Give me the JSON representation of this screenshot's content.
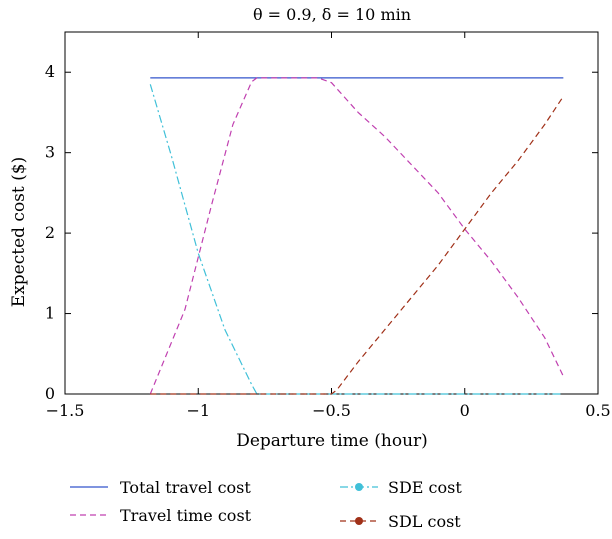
{
  "chart_data": {
    "type": "line",
    "title": "θ = 0.9, δ = 10 min",
    "xlabel": "Departure time (hour)",
    "ylabel": "Expected cost ($)",
    "xlim": [
      -1.5,
      0.5
    ],
    "ylim": [
      0,
      4.5
    ],
    "xticks": [
      -1.5,
      -1,
      -0.5,
      0,
      0.5
    ],
    "xtick_labels": [
      "−1.5",
      "−1",
      "−0.5",
      "0",
      "0.5"
    ],
    "yticks": [
      0,
      1,
      2,
      3,
      4
    ],
    "ytick_labels": [
      "0",
      "1",
      "2",
      "3",
      "4"
    ],
    "grid": false,
    "legend_position": "bottom",
    "series": [
      {
        "name": "Total travel cost",
        "color": "#3355cc",
        "style": "solid",
        "marker": "none",
        "x": [
          -1.18,
          0.37
        ],
        "y": [
          3.93,
          3.93
        ]
      },
      {
        "name": "Travel time cost",
        "color": "#c040b0",
        "style": "dashed",
        "marker": "none",
        "x": [
          -1.18,
          -1.05,
          -0.95,
          -0.87,
          -0.8,
          -0.78,
          -0.55,
          -0.5,
          -0.4,
          -0.3,
          -0.2,
          -0.1,
          0,
          0.1,
          0.2,
          0.3,
          0.37
        ],
        "y": [
          0,
          1.05,
          2.35,
          3.35,
          3.88,
          3.93,
          3.93,
          3.87,
          3.5,
          3.2,
          2.85,
          2.5,
          2.05,
          1.65,
          1.2,
          0.7,
          0.22
        ]
      },
      {
        "name": "SDE cost",
        "color": "#40c0d8",
        "style": "dashdot",
        "marker": "circle",
        "x": [
          -1.18,
          -1.1,
          -1.0,
          -0.9,
          -0.8,
          -0.78,
          -0.5,
          0.37
        ],
        "y": [
          3.85,
          2.95,
          1.75,
          0.8,
          0.12,
          0,
          0,
          0
        ]
      },
      {
        "name": "SDL cost",
        "color": "#a03018",
        "style": "dashed",
        "marker": "circle",
        "x": [
          -1.18,
          -0.5,
          -0.48,
          -0.4,
          -0.3,
          -0.2,
          -0.1,
          0,
          0.1,
          0.2,
          0.3,
          0.37
        ],
        "y": [
          0,
          0,
          0.05,
          0.4,
          0.8,
          1.2,
          1.6,
          2.05,
          2.5,
          2.9,
          3.35,
          3.7
        ]
      }
    ]
  }
}
